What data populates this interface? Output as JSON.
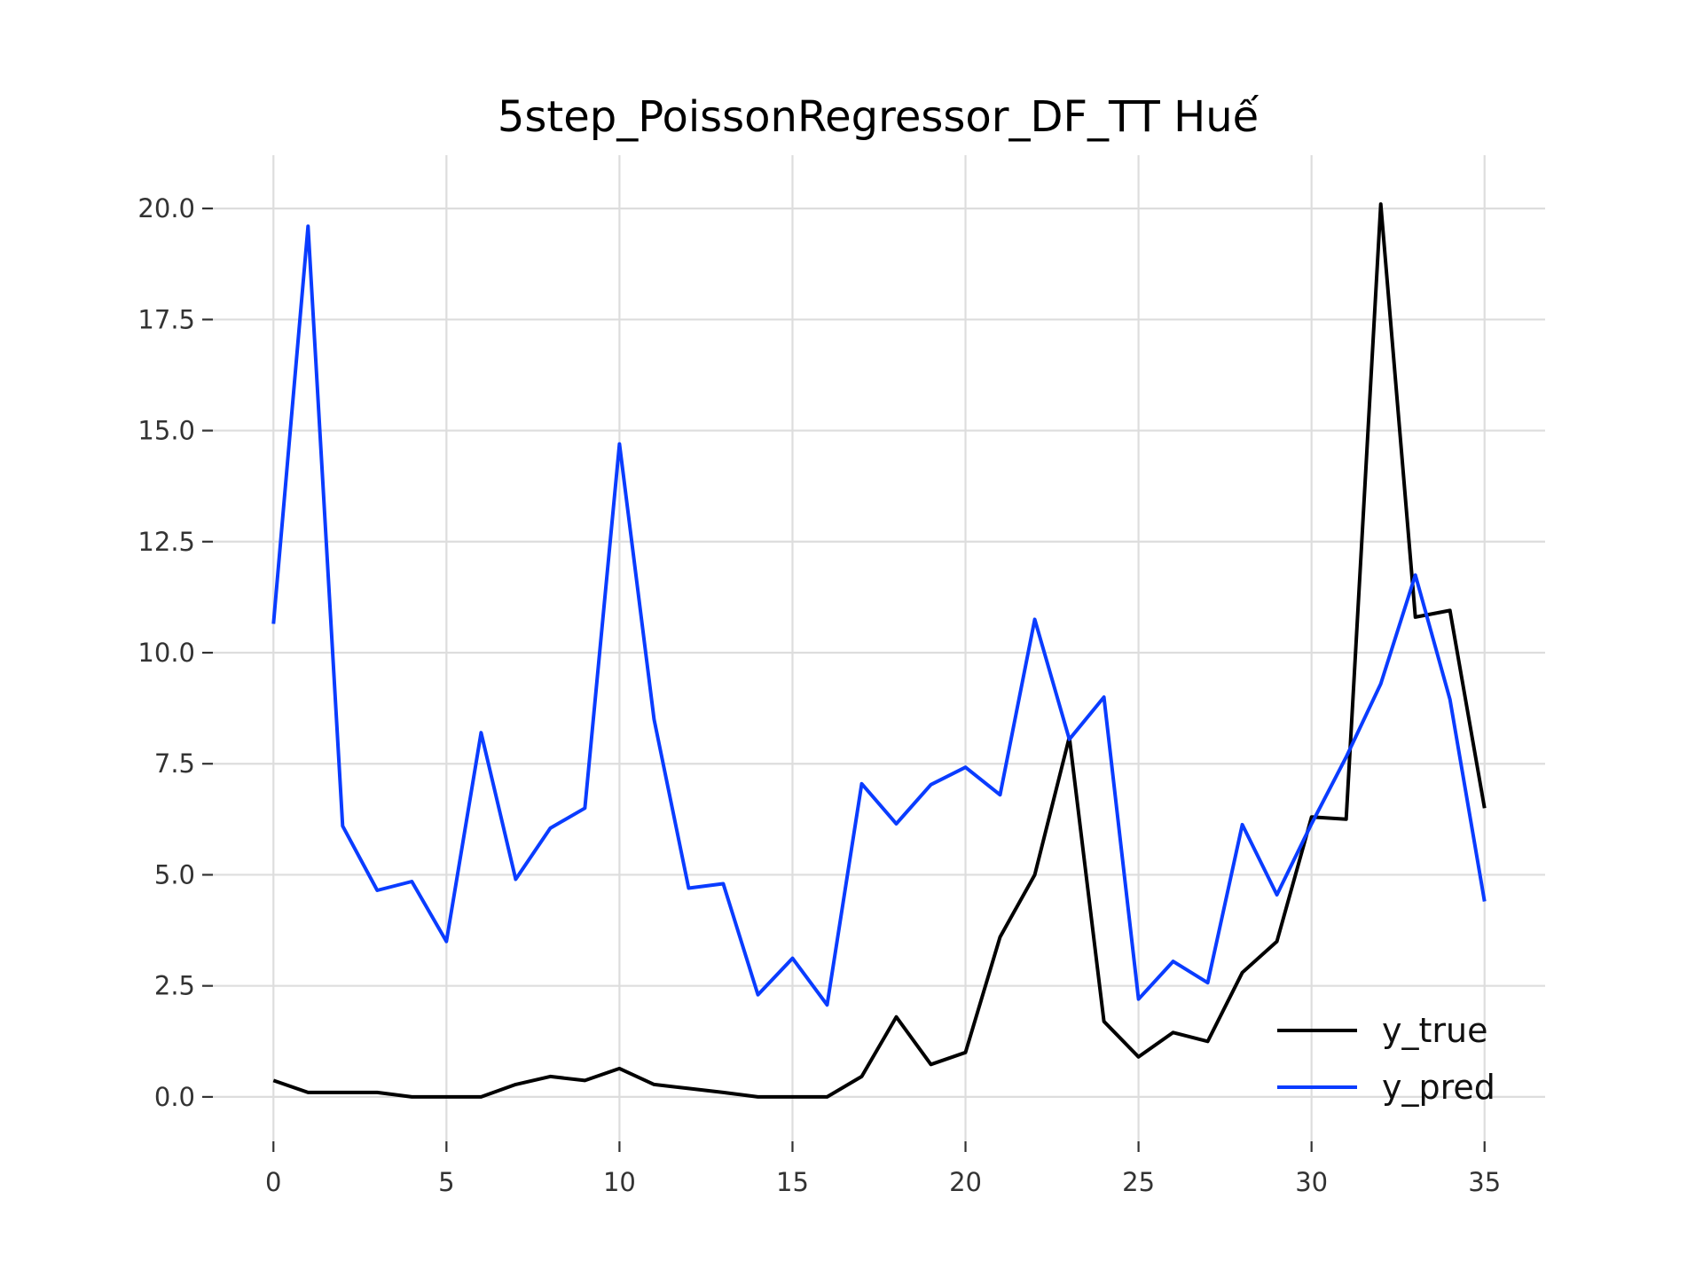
{
  "chart_data": {
    "type": "line",
    "title": "5step_PoissonRegressor_DF_TT Huế",
    "xlabel": "",
    "ylabel": "",
    "xlim": [
      -1.75,
      36.75
    ],
    "ylim": [
      -1.0,
      21.2
    ],
    "xticks": [
      0,
      5,
      10,
      15,
      20,
      25,
      30,
      35
    ],
    "yticks": [
      0.0,
      2.5,
      5.0,
      7.5,
      10.0,
      12.5,
      15.0,
      17.5,
      20.0
    ],
    "ytick_labels": [
      "0.0",
      "2.5",
      "5.0",
      "7.5",
      "10.0",
      "12.5",
      "15.0",
      "17.5",
      "20.0"
    ],
    "grid": true,
    "legend_position": "lower-right",
    "x": [
      0,
      1,
      2,
      3,
      4,
      5,
      6,
      7,
      8,
      9,
      10,
      11,
      12,
      13,
      14,
      15,
      16,
      17,
      18,
      19,
      20,
      21,
      22,
      23,
      24,
      25,
      26,
      27,
      28,
      29,
      30,
      31,
      32,
      33,
      34,
      35
    ],
    "series": [
      {
        "name": "y_true",
        "color": "#000000",
        "values": [
          0.37,
          0.1,
          0.1,
          0.1,
          0.0,
          0.0,
          0.0,
          0.28,
          0.46,
          0.37,
          0.64,
          0.28,
          0.19,
          0.1,
          0.0,
          0.0,
          0.0,
          0.46,
          1.8,
          0.73,
          1.0,
          3.6,
          5.0,
          8.1,
          1.7,
          0.9,
          1.45,
          1.25,
          2.8,
          3.5,
          6.3,
          6.25,
          20.1,
          10.8,
          10.95,
          6.5
        ]
      },
      {
        "name": "y_pred",
        "color": "#0a3cff",
        "values": [
          10.65,
          19.6,
          6.1,
          4.65,
          4.85,
          3.5,
          8.2,
          4.9,
          6.05,
          6.5,
          14.7,
          8.5,
          4.7,
          4.8,
          2.3,
          3.12,
          2.07,
          7.05,
          6.15,
          7.03,
          7.42,
          6.8,
          10.75,
          8.05,
          9.0,
          2.2,
          3.05,
          2.57,
          6.13,
          4.55,
          6.15,
          7.65,
          9.3,
          11.75,
          8.95,
          4.4
        ]
      }
    ]
  }
}
